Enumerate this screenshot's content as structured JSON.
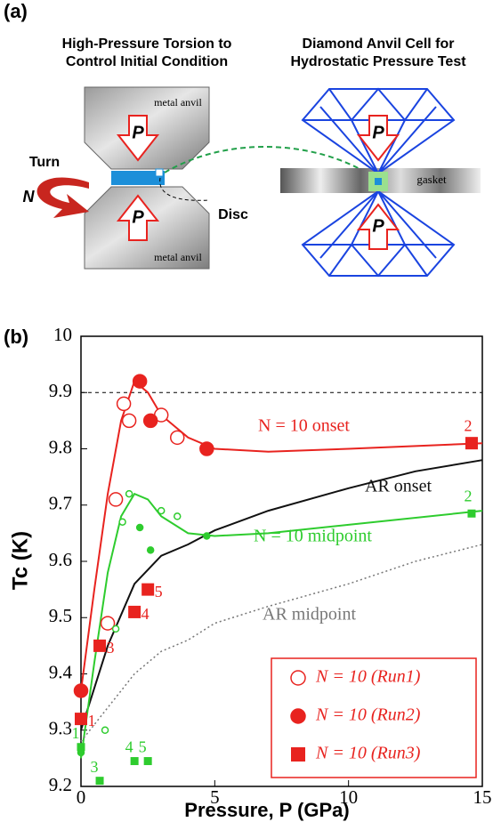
{
  "panel_a": {
    "label": "(a)",
    "left_title": [
      "High-Pressure Torsion to",
      "Control Initial Condition"
    ],
    "right_title": [
      "Diamond Anvil Cell for",
      "Hydrostatic Pressure Test"
    ],
    "top_anvil": "metal anvil",
    "bottom_anvil": "metal anvil",
    "pressure_symbol": "P",
    "turn": "Turn",
    "turn_symbol": "N",
    "disc": "Disc",
    "gasket": "gasket"
  },
  "chart_data": {
    "type": "scatter",
    "panel_label": "(b)",
    "x_label": "Pressure, P (GPa)",
    "y_label": "Tc (K)",
    "xlim": [
      0,
      15
    ],
    "ylim": [
      9.2,
      10
    ],
    "xticks": [
      0,
      5,
      10,
      15
    ],
    "yticks": [
      9.2,
      9.3,
      9.4,
      9.5,
      9.6,
      9.7,
      9.8,
      9.9,
      10
    ],
    "reference_line": 9.9,
    "legend": "lower right",
    "series": [
      {
        "name": "N = 10 onset",
        "mode": "line",
        "dash": "solid",
        "color": "#e8231f",
        "x": [
          0,
          0.5,
          1,
          1.5,
          2,
          2.5,
          3,
          4,
          5,
          7,
          10,
          15
        ],
        "values": [
          9.37,
          9.55,
          9.72,
          9.85,
          9.92,
          9.9,
          9.86,
          9.82,
          9.8,
          9.795,
          9.8,
          9.81
        ]
      },
      {
        "name": "AR onset",
        "mode": "line",
        "dash": "solid",
        "color": "#111111",
        "x": [
          0,
          1,
          2,
          3,
          4,
          5,
          7,
          10,
          12.5,
          15
        ],
        "values": [
          9.3,
          9.45,
          9.56,
          9.61,
          9.63,
          9.655,
          9.69,
          9.73,
          9.76,
          9.78
        ]
      },
      {
        "name": "N = 10 midpoint",
        "mode": "line",
        "dash": "solid",
        "color": "#2ecc2e",
        "x": [
          0,
          0.5,
          1,
          1.5,
          2,
          2.5,
          3,
          4,
          5,
          7,
          10,
          15
        ],
        "values": [
          9.25,
          9.42,
          9.58,
          9.68,
          9.72,
          9.71,
          9.68,
          9.65,
          9.645,
          9.65,
          9.665,
          9.69
        ]
      },
      {
        "name": "AR midpoint",
        "mode": "line",
        "dash": "dotted",
        "color": "#777777",
        "x": [
          0,
          1,
          2,
          3,
          4,
          5,
          7,
          10,
          12.5,
          15
        ],
        "values": [
          9.28,
          9.34,
          9.4,
          9.44,
          9.46,
          9.49,
          9.52,
          9.56,
          9.6,
          9.63
        ]
      },
      {
        "name": "N = 10 (Run1)",
        "mode": "markers",
        "marker": "open-circle",
        "color": "#e8231f",
        "x": [
          1.0,
          1.3,
          1.6,
          1.8,
          3.0,
          3.6
        ],
        "values": [
          9.49,
          9.71,
          9.88,
          9.85,
          9.86,
          9.82
        ]
      },
      {
        "name": "N = 10 (Run2)",
        "mode": "markers",
        "marker": "circle",
        "color": "#e8231f",
        "x": [
          0,
          2.2,
          2.6,
          4.7
        ],
        "values": [
          9.37,
          9.92,
          9.85,
          9.8
        ]
      },
      {
        "name": "N = 10 (Run3)",
        "mode": "markers",
        "marker": "square",
        "color": "#e8231f",
        "x": [
          0,
          0.7,
          2.0,
          2.5,
          14.6
        ],
        "values": [
          9.32,
          9.45,
          9.51,
          9.55,
          9.81
        ],
        "point_labels": [
          "1",
          "3",
          "4",
          "5",
          "2"
        ]
      },
      {
        "mode": "markers",
        "marker": "open-circle",
        "color": "#2ecc2e",
        "x": [
          0.9,
          1.3,
          1.55,
          1.8,
          3.0,
          3.6
        ],
        "values": [
          9.3,
          9.48,
          9.67,
          9.72,
          9.69,
          9.68
        ]
      },
      {
        "mode": "markers",
        "marker": "circle",
        "color": "#2ecc2e",
        "x": [
          0,
          2.2,
          2.6,
          4.7
        ],
        "values": [
          9.26,
          9.66,
          9.62,
          9.645
        ]
      },
      {
        "mode": "markers",
        "marker": "square",
        "color": "#2ecc2e",
        "x": [
          0,
          0.7,
          2.0,
          2.5,
          14.6
        ],
        "values": [
          9.27,
          9.21,
          9.245,
          9.245,
          9.685
        ],
        "point_labels": [
          "1",
          "3",
          "4",
          "5",
          "2"
        ]
      }
    ]
  }
}
